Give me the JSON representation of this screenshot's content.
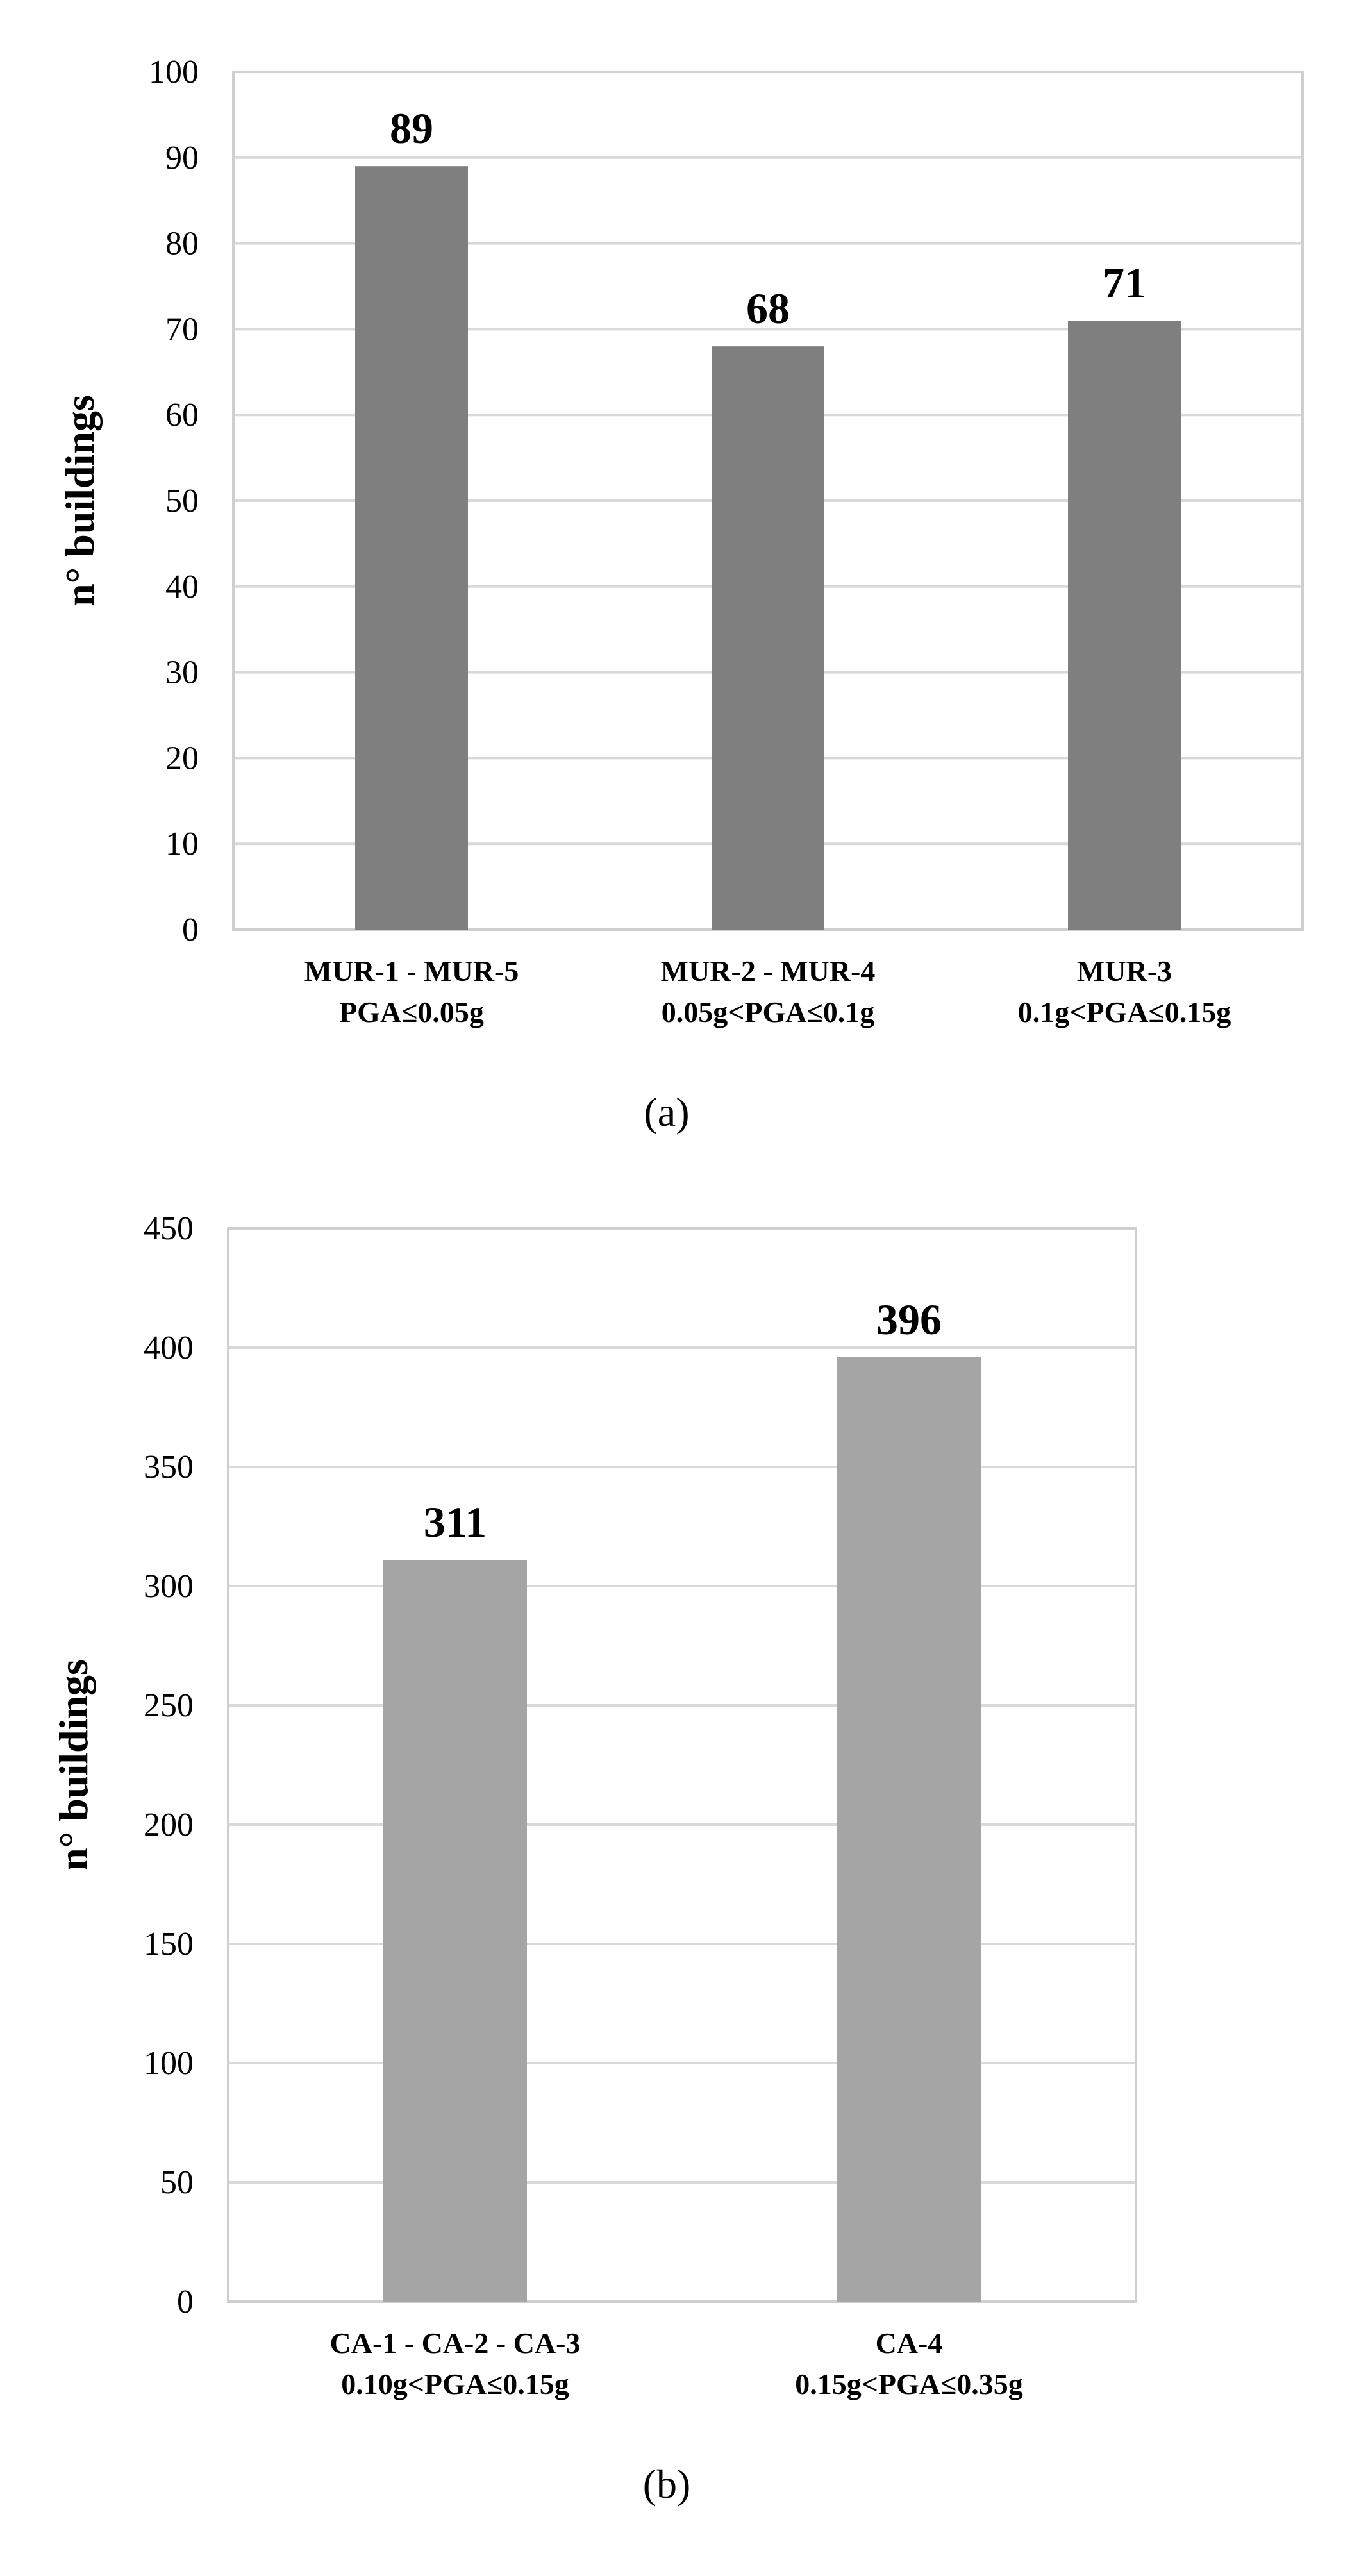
{
  "chart_data": [
    {
      "type": "bar",
      "panel_label": "(a)",
      "ylabel": "n° buildings",
      "ylim": [
        0,
        100
      ],
      "yticks": [
        0,
        10,
        20,
        30,
        40,
        50,
        60,
        70,
        80,
        90,
        100
      ],
      "categories": [
        [
          "MUR-1 - MUR-5",
          "PGA≤0.05g"
        ],
        [
          "MUR-2 - MUR-4",
          "0.05g<PGA≤0.1g"
        ],
        [
          "MUR-3",
          "0.1g<PGA≤0.15g"
        ]
      ],
      "values": [
        89,
        68,
        71
      ],
      "bar_color": "#7f7f7f",
      "grid": true
    },
    {
      "type": "bar",
      "panel_label": "(b)",
      "ylabel": "n° buildings",
      "ylim": [
        0,
        450
      ],
      "yticks": [
        0,
        50,
        100,
        150,
        200,
        250,
        300,
        350,
        400,
        450
      ],
      "categories": [
        [
          "CA-1 - CA-2 - CA-3",
          "0.10g<PGA≤0.15g"
        ],
        [
          "CA-4",
          "0.15g<PGA≤0.35g"
        ]
      ],
      "values": [
        311,
        396
      ],
      "bar_color": "#a5a5a5",
      "grid": true
    }
  ]
}
